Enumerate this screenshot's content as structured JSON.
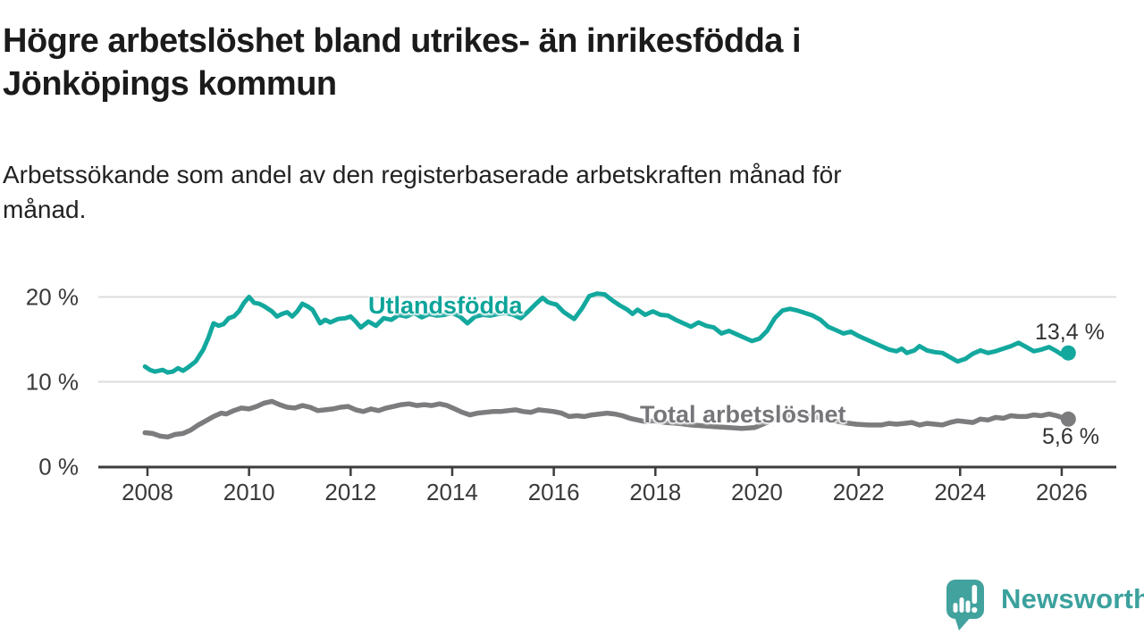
{
  "header": {
    "title_lines": [
      "Högre arbetslöshet bland utrikes- än inrikesfödda i",
      "Jönköpings kommun"
    ],
    "subtitle_lines": [
      "Arbetssökande som andel av den registerbaserade arbetskraften månad för",
      "månad."
    ]
  },
  "chart_data": {
    "type": "line",
    "title": "Högre arbetslöshet bland utrikes- än inrikesfödda i Jönköpings kommun",
    "subtitle": "Arbetssökande som andel av den registerbaserade arbetskraften månad för månad.",
    "xlabel": "",
    "ylabel": "",
    "x_ticks": [
      2008,
      2010,
      2012,
      2014,
      2016,
      2018,
      2020,
      2022,
      2024,
      2026
    ],
    "y_ticks": [
      {
        "value": 0,
        "label": "0 %"
      },
      {
        "value": 10,
        "label": "10 %"
      },
      {
        "value": 20,
        "label": "20 %"
      }
    ],
    "xlim": [
      2007.8,
      2027.0
    ],
    "ylim": [
      0,
      21
    ],
    "grid": "horizontal",
    "legend_position": "inline-labels",
    "series": [
      {
        "name": "Utlandsfödda",
        "color": "#13a89e",
        "end_label": "13,4 %",
        "end_value": 13.4,
        "points": [
          [
            2007.95,
            11.8
          ],
          [
            2008.05,
            11.4
          ],
          [
            2008.15,
            11.2
          ],
          [
            2008.3,
            11.4
          ],
          [
            2008.4,
            11.1
          ],
          [
            2008.5,
            11.2
          ],
          [
            2008.6,
            11.6
          ],
          [
            2008.7,
            11.3
          ],
          [
            2008.8,
            11.7
          ],
          [
            2008.95,
            12.4
          ],
          [
            2009.1,
            13.8
          ],
          [
            2009.2,
            15.2
          ],
          [
            2009.3,
            16.9
          ],
          [
            2009.4,
            16.6
          ],
          [
            2009.5,
            16.8
          ],
          [
            2009.6,
            17.5
          ],
          [
            2009.7,
            17.7
          ],
          [
            2009.8,
            18.3
          ],
          [
            2009.9,
            19.3
          ],
          [
            2010.0,
            20.0
          ],
          [
            2010.1,
            19.3
          ],
          [
            2010.2,
            19.2
          ],
          [
            2010.3,
            18.9
          ],
          [
            2010.45,
            18.3
          ],
          [
            2010.55,
            17.7
          ],
          [
            2010.65,
            18.0
          ],
          [
            2010.75,
            18.2
          ],
          [
            2010.85,
            17.7
          ],
          [
            2010.95,
            18.3
          ],
          [
            2011.05,
            19.2
          ],
          [
            2011.15,
            18.9
          ],
          [
            2011.25,
            18.5
          ],
          [
            2011.4,
            16.9
          ],
          [
            2011.5,
            17.3
          ],
          [
            2011.6,
            17.0
          ],
          [
            2011.75,
            17.4
          ],
          [
            2011.9,
            17.5
          ],
          [
            2012.0,
            17.7
          ],
          [
            2012.1,
            17.1
          ],
          [
            2012.2,
            16.4
          ],
          [
            2012.35,
            17.1
          ],
          [
            2012.5,
            16.6
          ],
          [
            2012.65,
            17.5
          ],
          [
            2012.8,
            17.3
          ],
          [
            2012.95,
            17.9
          ],
          [
            2013.1,
            17.7
          ],
          [
            2013.25,
            18.1
          ],
          [
            2013.4,
            17.6
          ],
          [
            2013.55,
            18.0
          ],
          [
            2013.7,
            17.8
          ],
          [
            2013.85,
            17.9
          ],
          [
            2014.0,
            18.1
          ],
          [
            2014.15,
            17.7
          ],
          [
            2014.3,
            16.9
          ],
          [
            2014.45,
            17.7
          ],
          [
            2014.6,
            17.9
          ],
          [
            2014.75,
            17.8
          ],
          [
            2014.9,
            18.0
          ],
          [
            2015.05,
            18.1
          ],
          [
            2015.2,
            17.9
          ],
          [
            2015.35,
            17.5
          ],
          [
            2015.5,
            18.3
          ],
          [
            2015.65,
            19.2
          ],
          [
            2015.78,
            19.9
          ],
          [
            2015.88,
            19.4
          ],
          [
            2015.98,
            19.2
          ],
          [
            2016.05,
            19.1
          ],
          [
            2016.2,
            18.2
          ],
          [
            2016.4,
            17.4
          ],
          [
            2016.55,
            18.6
          ],
          [
            2016.7,
            20.1
          ],
          [
            2016.85,
            20.4
          ],
          [
            2017.0,
            20.3
          ],
          [
            2017.15,
            19.6
          ],
          [
            2017.3,
            19.0
          ],
          [
            2017.45,
            18.5
          ],
          [
            2017.55,
            18.0
          ],
          [
            2017.65,
            18.5
          ],
          [
            2017.8,
            17.9
          ],
          [
            2017.95,
            18.3
          ],
          [
            2018.1,
            17.9
          ],
          [
            2018.25,
            17.8
          ],
          [
            2018.4,
            17.3
          ],
          [
            2018.55,
            16.9
          ],
          [
            2018.7,
            16.5
          ],
          [
            2018.85,
            17.0
          ],
          [
            2019.0,
            16.6
          ],
          [
            2019.15,
            16.4
          ],
          [
            2019.3,
            15.7
          ],
          [
            2019.45,
            16.0
          ],
          [
            2019.6,
            15.6
          ],
          [
            2019.75,
            15.2
          ],
          [
            2019.9,
            14.8
          ],
          [
            2020.05,
            15.1
          ],
          [
            2020.2,
            16.0
          ],
          [
            2020.35,
            17.5
          ],
          [
            2020.5,
            18.4
          ],
          [
            2020.65,
            18.6
          ],
          [
            2020.8,
            18.4
          ],
          [
            2020.95,
            18.1
          ],
          [
            2021.1,
            17.8
          ],
          [
            2021.25,
            17.3
          ],
          [
            2021.4,
            16.5
          ],
          [
            2021.55,
            16.1
          ],
          [
            2021.7,
            15.7
          ],
          [
            2021.85,
            15.9
          ],
          [
            2022.0,
            15.4
          ],
          [
            2022.15,
            15.0
          ],
          [
            2022.3,
            14.6
          ],
          [
            2022.45,
            14.2
          ],
          [
            2022.6,
            13.8
          ],
          [
            2022.75,
            13.6
          ],
          [
            2022.85,
            13.9
          ],
          [
            2022.95,
            13.4
          ],
          [
            2023.1,
            13.7
          ],
          [
            2023.2,
            14.2
          ],
          [
            2023.35,
            13.7
          ],
          [
            2023.5,
            13.5
          ],
          [
            2023.65,
            13.4
          ],
          [
            2023.8,
            12.9
          ],
          [
            2023.95,
            12.4
          ],
          [
            2024.1,
            12.7
          ],
          [
            2024.25,
            13.3
          ],
          [
            2024.4,
            13.7
          ],
          [
            2024.55,
            13.4
          ],
          [
            2024.7,
            13.6
          ],
          [
            2024.85,
            13.9
          ],
          [
            2025.0,
            14.2
          ],
          [
            2025.15,
            14.6
          ],
          [
            2025.3,
            14.1
          ],
          [
            2025.45,
            13.6
          ],
          [
            2025.6,
            13.8
          ],
          [
            2025.75,
            14.1
          ],
          [
            2025.9,
            13.6
          ],
          [
            2026.0,
            13.2
          ],
          [
            2026.13,
            13.4
          ]
        ]
      },
      {
        "name": "Total arbetslöshet",
        "color": "#7c7c7e",
        "end_label": "5,6 %",
        "end_value": 5.6,
        "points": [
          [
            2007.95,
            4.0
          ],
          [
            2008.1,
            3.9
          ],
          [
            2008.25,
            3.6
          ],
          [
            2008.4,
            3.5
          ],
          [
            2008.55,
            3.8
          ],
          [
            2008.7,
            3.9
          ],
          [
            2008.85,
            4.3
          ],
          [
            2009.0,
            4.9
          ],
          [
            2009.15,
            5.4
          ],
          [
            2009.3,
            5.9
          ],
          [
            2009.45,
            6.3
          ],
          [
            2009.55,
            6.2
          ],
          [
            2009.7,
            6.6
          ],
          [
            2009.85,
            6.9
          ],
          [
            2010.0,
            6.8
          ],
          [
            2010.15,
            7.1
          ],
          [
            2010.3,
            7.5
          ],
          [
            2010.45,
            7.7
          ],
          [
            2010.6,
            7.3
          ],
          [
            2010.75,
            7.0
          ],
          [
            2010.9,
            6.9
          ],
          [
            2011.05,
            7.2
          ],
          [
            2011.2,
            7.0
          ],
          [
            2011.35,
            6.6
          ],
          [
            2011.5,
            6.7
          ],
          [
            2011.65,
            6.8
          ],
          [
            2011.8,
            7.0
          ],
          [
            2011.95,
            7.1
          ],
          [
            2012.1,
            6.7
          ],
          [
            2012.25,
            6.5
          ],
          [
            2012.4,
            6.8
          ],
          [
            2012.55,
            6.6
          ],
          [
            2012.7,
            6.9
          ],
          [
            2012.85,
            7.1
          ],
          [
            2013.0,
            7.3
          ],
          [
            2013.15,
            7.4
          ],
          [
            2013.3,
            7.2
          ],
          [
            2013.45,
            7.3
          ],
          [
            2013.6,
            7.2
          ],
          [
            2013.75,
            7.4
          ],
          [
            2013.9,
            7.2
          ],
          [
            2014.05,
            6.8
          ],
          [
            2014.2,
            6.4
          ],
          [
            2014.35,
            6.1
          ],
          [
            2014.5,
            6.3
          ],
          [
            2014.65,
            6.4
          ],
          [
            2014.8,
            6.5
          ],
          [
            2014.95,
            6.5
          ],
          [
            2015.1,
            6.6
          ],
          [
            2015.25,
            6.7
          ],
          [
            2015.4,
            6.5
          ],
          [
            2015.55,
            6.4
          ],
          [
            2015.7,
            6.7
          ],
          [
            2015.85,
            6.6
          ],
          [
            2016.0,
            6.5
          ],
          [
            2016.15,
            6.3
          ],
          [
            2016.3,
            5.9
          ],
          [
            2016.45,
            6.0
          ],
          [
            2016.6,
            5.9
          ],
          [
            2016.75,
            6.1
          ],
          [
            2016.9,
            6.2
          ],
          [
            2017.05,
            6.3
          ],
          [
            2017.2,
            6.2
          ],
          [
            2017.35,
            6.0
          ],
          [
            2017.5,
            5.7
          ],
          [
            2017.65,
            5.5
          ],
          [
            2017.8,
            5.3
          ],
          [
            2017.95,
            5.4
          ],
          [
            2018.2,
            5.2
          ],
          [
            2018.45,
            5.1
          ],
          [
            2018.7,
            4.9
          ],
          [
            2018.95,
            4.8
          ],
          [
            2019.2,
            4.7
          ],
          [
            2019.45,
            4.6
          ],
          [
            2019.7,
            4.5
          ],
          [
            2019.95,
            4.6
          ],
          [
            2020.2,
            5.2
          ],
          [
            2020.45,
            5.9
          ],
          [
            2020.7,
            6.1
          ],
          [
            2020.95,
            6.0
          ],
          [
            2021.2,
            5.8
          ],
          [
            2021.45,
            5.5
          ],
          [
            2021.7,
            5.2
          ],
          [
            2021.95,
            5.0
          ],
          [
            2022.2,
            4.9
          ],
          [
            2022.45,
            4.9
          ],
          [
            2022.6,
            5.1
          ],
          [
            2022.75,
            5.0
          ],
          [
            2022.9,
            5.1
          ],
          [
            2023.05,
            5.2
          ],
          [
            2023.2,
            4.9
          ],
          [
            2023.35,
            5.1
          ],
          [
            2023.5,
            5.0
          ],
          [
            2023.65,
            4.9
          ],
          [
            2023.8,
            5.2
          ],
          [
            2023.95,
            5.4
          ],
          [
            2024.1,
            5.3
          ],
          [
            2024.25,
            5.2
          ],
          [
            2024.4,
            5.6
          ],
          [
            2024.55,
            5.5
          ],
          [
            2024.7,
            5.8
          ],
          [
            2024.85,
            5.7
          ],
          [
            2025.0,
            6.0
          ],
          [
            2025.15,
            5.9
          ],
          [
            2025.3,
            5.9
          ],
          [
            2025.45,
            6.1
          ],
          [
            2025.6,
            6.0
          ],
          [
            2025.75,
            6.2
          ],
          [
            2025.9,
            6.0
          ],
          [
            2026.0,
            5.8
          ],
          [
            2026.13,
            5.6
          ]
        ]
      }
    ],
    "colors": {
      "foreign_born_line": "#13a89e",
      "total_line": "#7c7c7e",
      "axis": "#3c3c3c",
      "gridline": "#dcdcdc",
      "value_label": "#333333"
    }
  },
  "branding": {
    "logo_text": "Newsworthy",
    "logo_color": "#42a29e"
  }
}
